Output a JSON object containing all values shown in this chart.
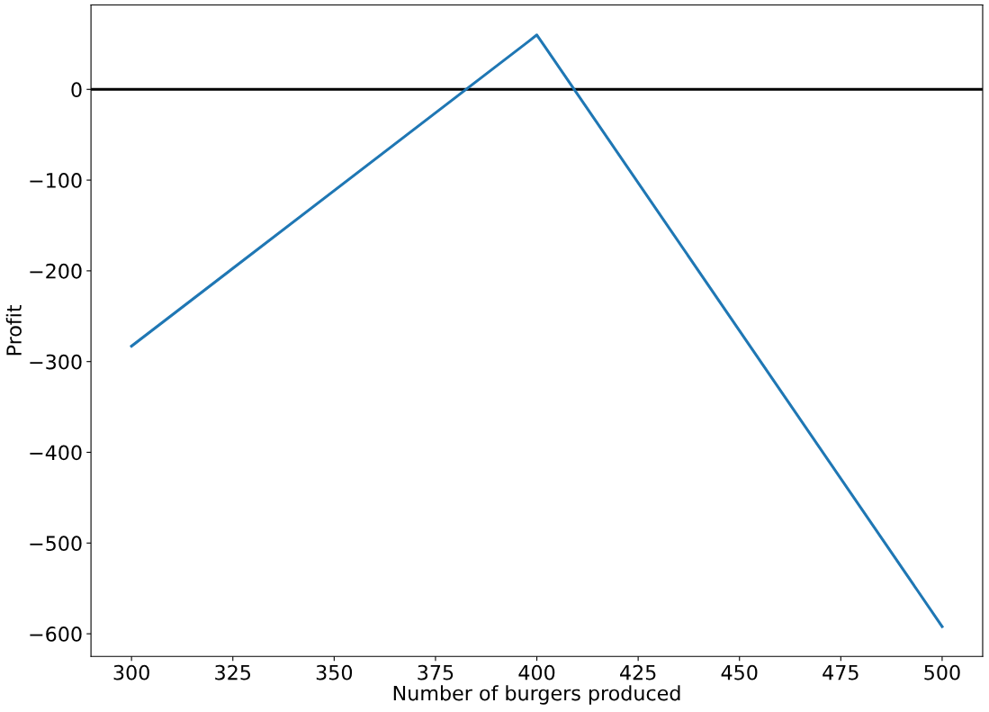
{
  "chart_data": {
    "type": "line",
    "xlabel": "Number of burgers produced",
    "ylabel": "Profit",
    "x": [
      300,
      398,
      400,
      402,
      500
    ],
    "series": [
      {
        "color": "#1f77b4",
        "values": [
          -283,
          53,
          60,
          47,
          -592
        ]
      }
    ],
    "xlim": [
      290,
      510
    ],
    "ylim": [
      -625,
      93
    ],
    "xticks": [
      300,
      325,
      350,
      375,
      400,
      425,
      450,
      475,
      500
    ],
    "yticks": [
      -600,
      -500,
      -400,
      -300,
      -200,
      -100,
      0
    ],
    "ref_lines": [
      {
        "axis": "y",
        "value": 0,
        "color": "#000000",
        "line_style": "solid"
      }
    ],
    "grid": false,
    "legend": false,
    "marker": "none",
    "line_style": "solid"
  }
}
